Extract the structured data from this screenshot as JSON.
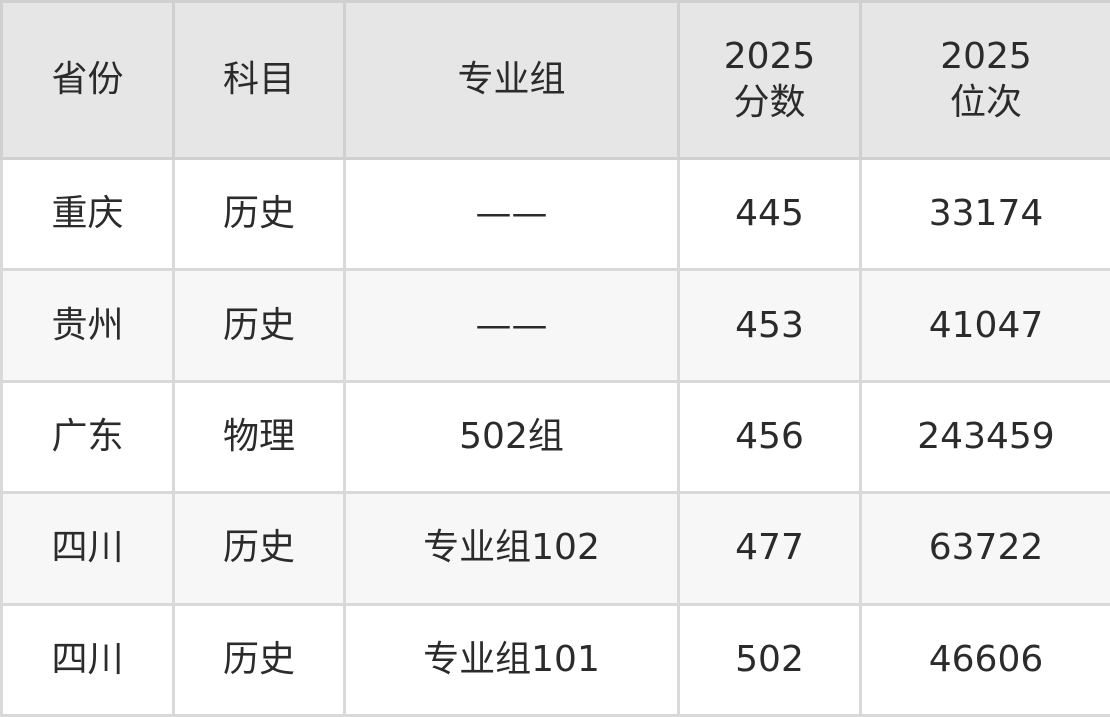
{
  "table": {
    "headers": [
      {
        "line1": "省份",
        "line2": ""
      },
      {
        "line1": "科目",
        "line2": ""
      },
      {
        "line1": "专业组",
        "line2": ""
      },
      {
        "line1": "2025",
        "line2": "分数"
      },
      {
        "line1": "2025",
        "line2": "位次"
      }
    ],
    "rows": [
      [
        "重庆",
        "历史",
        "——",
        "445",
        "33174"
      ],
      [
        "贵州",
        "历史",
        "——",
        "453",
        "41047"
      ],
      [
        "广东",
        "物理",
        "502组",
        "456",
        "243459"
      ],
      [
        "四川",
        "历史",
        "专业组102",
        "477",
        "63722"
      ],
      [
        "四川",
        "历史",
        "专业组101",
        "502",
        "46606"
      ]
    ]
  }
}
